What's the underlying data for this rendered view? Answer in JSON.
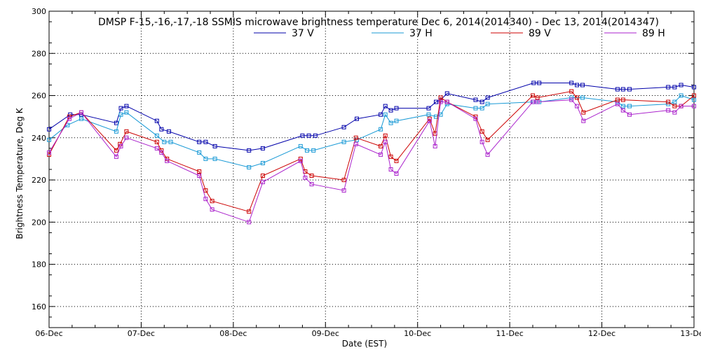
{
  "chart_data": {
    "type": "line",
    "title": "DMSP F-15,-16,-17,-18 SSMIS microwave brightness temperature Dec  6, 2014(2014340) - Dec 13, 2014(2014347)",
    "xlabel": "Date (EST)",
    "ylabel": "Brightness Temperature, Deg K",
    "xlim": [
      0,
      7
    ],
    "ylim": [
      150,
      300
    ],
    "grid": true,
    "legend_placement": "top-center",
    "x_ticks": [
      {
        "x": 0,
        "label": "06-Dec"
      },
      {
        "x": 1,
        "label": "07-Dec"
      },
      {
        "x": 2,
        "label": "08-Dec"
      },
      {
        "x": 3,
        "label": "09-Dec"
      },
      {
        "x": 4,
        "label": "10-Dec"
      },
      {
        "x": 5,
        "label": "11-Dec"
      },
      {
        "x": 6,
        "label": "12-Dec"
      },
      {
        "x": 7,
        "label": "13-Dec"
      }
    ],
    "y_ticks": [
      {
        "y": 160,
        "label": "160"
      },
      {
        "y": 180,
        "label": "180"
      },
      {
        "y": 200,
        "label": "200"
      },
      {
        "y": 220,
        "label": "220"
      },
      {
        "y": 240,
        "label": "240"
      },
      {
        "y": 260,
        "label": "260"
      },
      {
        "y": 280,
        "label": "280"
      },
      {
        "y": 300,
        "label": "300"
      }
    ],
    "series": [
      {
        "name": "37 V",
        "color": "#0000aa",
        "points": [
          [
            0.0,
            244
          ],
          [
            0.23,
            251
          ],
          [
            0.35,
            251
          ],
          [
            0.73,
            247
          ],
          [
            0.78,
            254
          ],
          [
            0.84,
            255
          ],
          [
            1.17,
            248
          ],
          [
            1.22,
            244
          ],
          [
            1.3,
            243
          ],
          [
            1.63,
            238
          ],
          [
            1.7,
            238
          ],
          [
            1.8,
            236
          ],
          [
            2.17,
            234
          ],
          [
            2.32,
            235
          ],
          [
            2.75,
            241
          ],
          [
            2.82,
            241
          ],
          [
            2.89,
            241
          ],
          [
            3.2,
            245
          ],
          [
            3.34,
            249
          ],
          [
            3.6,
            251
          ],
          [
            3.65,
            255
          ],
          [
            3.71,
            253
          ],
          [
            3.77,
            254
          ],
          [
            4.12,
            254
          ],
          [
            4.2,
            257
          ],
          [
            4.25,
            258
          ],
          [
            4.32,
            261
          ],
          [
            4.63,
            258
          ],
          [
            4.7,
            257
          ],
          [
            4.76,
            259
          ],
          [
            5.26,
            266
          ],
          [
            5.32,
            266
          ],
          [
            5.67,
            266
          ],
          [
            5.73,
            265
          ],
          [
            5.79,
            265
          ],
          [
            6.17,
            263
          ],
          [
            6.23,
            263
          ],
          [
            6.3,
            263
          ],
          [
            6.72,
            264
          ],
          [
            6.79,
            264
          ],
          [
            6.86,
            265
          ],
          [
            7.0,
            264
          ]
        ]
      },
      {
        "name": "37 H",
        "color": "#1a9ad6",
        "points": [
          [
            0.0,
            239
          ],
          [
            0.2,
            246
          ],
          [
            0.35,
            249
          ],
          [
            0.73,
            243
          ],
          [
            0.78,
            251
          ],
          [
            0.84,
            252
          ],
          [
            1.17,
            241
          ],
          [
            1.25,
            238
          ],
          [
            1.32,
            238
          ],
          [
            1.63,
            233
          ],
          [
            1.7,
            230
          ],
          [
            1.8,
            230
          ],
          [
            2.17,
            226
          ],
          [
            2.32,
            228
          ],
          [
            2.73,
            236
          ],
          [
            2.8,
            234
          ],
          [
            2.87,
            234
          ],
          [
            3.2,
            238
          ],
          [
            3.34,
            239
          ],
          [
            3.6,
            244
          ],
          [
            3.65,
            251
          ],
          [
            3.71,
            247
          ],
          [
            3.77,
            248
          ],
          [
            4.12,
            251
          ],
          [
            4.2,
            250
          ],
          [
            4.25,
            251
          ],
          [
            4.32,
            256
          ],
          [
            4.63,
            254
          ],
          [
            4.7,
            254
          ],
          [
            4.76,
            256
          ],
          [
            5.26,
            257
          ],
          [
            5.32,
            257
          ],
          [
            5.67,
            259
          ],
          [
            5.73,
            259
          ],
          [
            5.79,
            259
          ],
          [
            6.17,
            257
          ],
          [
            6.23,
            255
          ],
          [
            6.3,
            255
          ],
          [
            6.72,
            256
          ],
          [
            6.79,
            257
          ],
          [
            6.86,
            260
          ],
          [
            7.0,
            258
          ]
        ]
      },
      {
        "name": "89 V",
        "color": "#cc0000",
        "points": [
          [
            0.0,
            232
          ],
          [
            0.22,
            250
          ],
          [
            0.35,
            252
          ],
          [
            0.73,
            234
          ],
          [
            0.77,
            237
          ],
          [
            0.84,
            243
          ],
          [
            1.17,
            238
          ],
          [
            1.22,
            234
          ],
          [
            1.28,
            230
          ],
          [
            1.63,
            224
          ],
          [
            1.7,
            215
          ],
          [
            1.77,
            210
          ],
          [
            2.17,
            205
          ],
          [
            2.32,
            222
          ],
          [
            2.73,
            230
          ],
          [
            2.78,
            224
          ],
          [
            2.85,
            222
          ],
          [
            3.2,
            220
          ],
          [
            3.33,
            240
          ],
          [
            3.6,
            236
          ],
          [
            3.65,
            241
          ],
          [
            3.71,
            231
          ],
          [
            3.77,
            229
          ],
          [
            4.13,
            249
          ],
          [
            4.19,
            242
          ],
          [
            4.25,
            259
          ],
          [
            4.32,
            257
          ],
          [
            4.63,
            250
          ],
          [
            4.7,
            243
          ],
          [
            4.76,
            239
          ],
          [
            5.25,
            260
          ],
          [
            5.3,
            259
          ],
          [
            5.67,
            262
          ],
          [
            5.73,
            259
          ],
          [
            5.8,
            252
          ],
          [
            6.17,
            258
          ],
          [
            6.23,
            258
          ],
          [
            6.72,
            257
          ],
          [
            6.79,
            255
          ],
          [
            6.86,
            255
          ],
          [
            7.0,
            260
          ]
        ]
      },
      {
        "name": "89 H",
        "color": "#aa22cc",
        "points": [
          [
            0.0,
            233
          ],
          [
            0.22,
            249
          ],
          [
            0.35,
            252
          ],
          [
            0.73,
            231
          ],
          [
            0.78,
            236
          ],
          [
            0.84,
            240
          ],
          [
            1.17,
            235
          ],
          [
            1.22,
            233
          ],
          [
            1.28,
            229
          ],
          [
            1.63,
            222
          ],
          [
            1.7,
            211
          ],
          [
            1.77,
            206
          ],
          [
            2.17,
            200
          ],
          [
            2.32,
            219
          ],
          [
            2.73,
            229
          ],
          [
            2.78,
            221
          ],
          [
            2.85,
            218
          ],
          [
            3.2,
            215
          ],
          [
            3.33,
            237
          ],
          [
            3.6,
            232
          ],
          [
            3.65,
            238
          ],
          [
            3.71,
            225
          ],
          [
            3.77,
            223
          ],
          [
            4.13,
            248
          ],
          [
            4.19,
            236
          ],
          [
            4.25,
            257
          ],
          [
            4.32,
            257
          ],
          [
            4.63,
            249
          ],
          [
            4.7,
            238
          ],
          [
            4.76,
            232
          ],
          [
            5.25,
            257
          ],
          [
            5.3,
            257
          ],
          [
            5.67,
            258
          ],
          [
            5.73,
            255
          ],
          [
            5.8,
            248
          ],
          [
            6.17,
            256
          ],
          [
            6.23,
            253
          ],
          [
            6.3,
            251
          ],
          [
            6.72,
            253
          ],
          [
            6.79,
            252
          ],
          [
            6.86,
            255
          ],
          [
            7.0,
            255
          ]
        ]
      }
    ]
  }
}
